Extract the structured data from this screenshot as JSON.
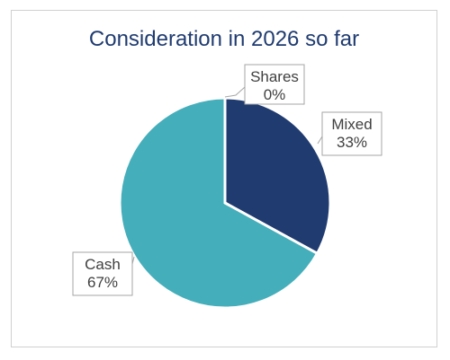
{
  "chart_data": {
    "type": "pie",
    "title": "Consideration in 2026 so far",
    "categories": [
      "Shares",
      "Mixed",
      "Cash"
    ],
    "values": [
      0,
      33,
      67
    ],
    "value_labels": [
      "0%",
      "33%",
      "67%"
    ],
    "colors": [
      "#1f3b70",
      "#1f3b70",
      "#45aebb"
    ],
    "legend": "none",
    "data_labels": "callouts"
  }
}
